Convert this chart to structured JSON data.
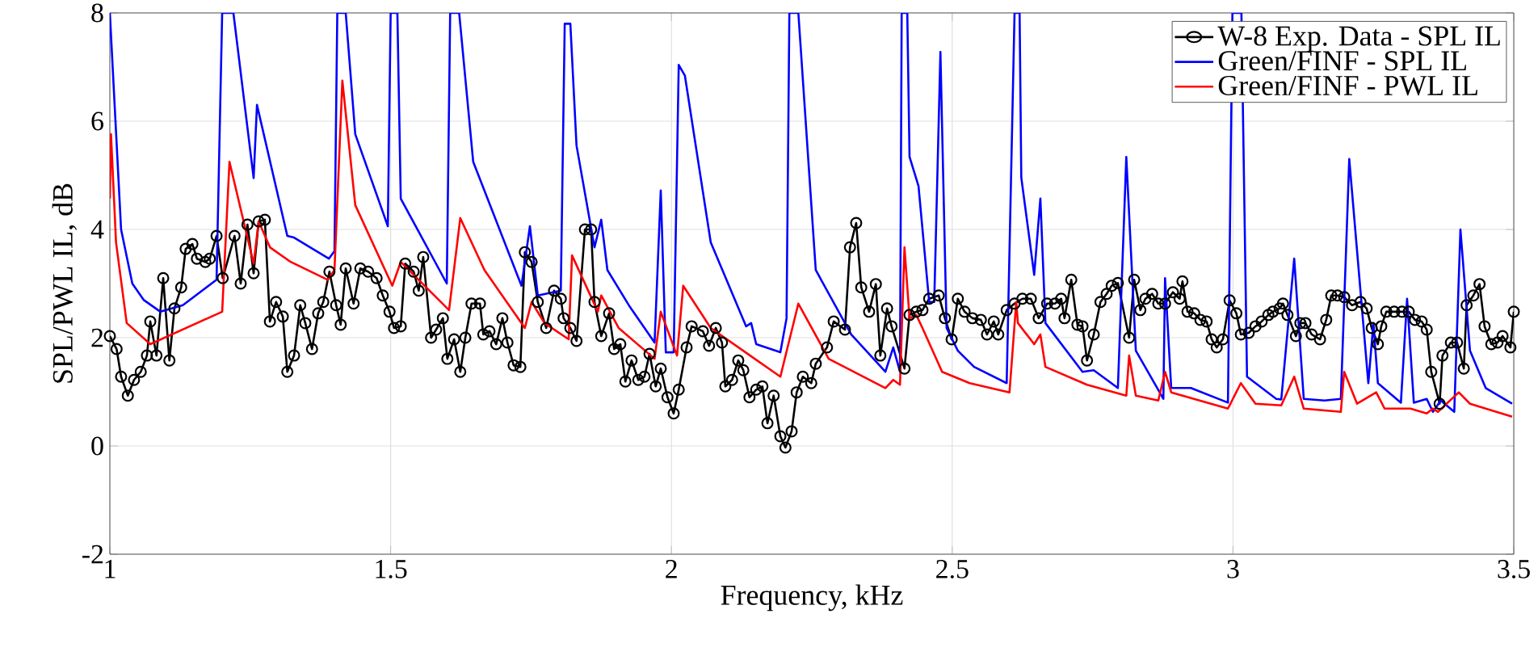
{
  "chart_data": {
    "type": "line",
    "xlabel": "Frequency, kHz",
    "ylabel": "SPL/PWL IL, dB",
    "xlim": [
      1,
      3.5
    ],
    "ylim": [
      -2,
      8
    ],
    "xticks": [
      1,
      1.5,
      2,
      2.5,
      3,
      3.5
    ],
    "yticks": [
      -2,
      0,
      2,
      4,
      6,
      8
    ],
    "grid": true,
    "legend": "top right",
    "series": [
      {
        "name": "W-8 Exp. Data - SPL IL",
        "color": "#000000",
        "marker": "circle",
        "x": [
          1.0,
          1.012,
          1.02,
          1.032,
          1.043,
          1.055,
          1.066,
          1.072,
          1.083,
          1.095,
          1.106,
          1.115,
          1.127,
          1.135,
          1.147,
          1.155,
          1.17,
          1.178,
          1.19,
          1.201,
          1.222,
          1.233,
          1.245,
          1.256,
          1.265,
          1.276,
          1.285,
          1.296,
          1.308,
          1.316,
          1.328,
          1.339,
          1.348,
          1.36,
          1.371,
          1.38,
          1.391,
          1.403,
          1.411,
          1.42,
          1.434,
          1.446,
          1.46,
          1.475,
          1.486,
          1.498,
          1.506,
          1.518,
          1.526,
          1.541,
          1.55,
          1.558,
          1.572,
          1.581,
          1.593,
          1.601,
          1.613,
          1.624,
          1.633,
          1.644,
          1.659,
          1.665,
          1.676,
          1.688,
          1.699,
          1.708,
          1.719,
          1.731,
          1.739,
          1.751,
          1.762,
          1.777,
          1.791,
          1.803,
          1.808,
          1.82,
          1.831,
          1.846,
          1.857,
          1.863,
          1.875,
          1.889,
          1.898,
          1.909,
          1.918,
          1.929,
          1.941,
          1.952,
          1.961,
          1.972,
          1.981,
          1.993,
          2.004,
          2.013,
          2.027,
          2.036,
          2.056,
          2.067,
          2.079,
          2.09,
          2.096,
          2.108,
          2.119,
          2.128,
          2.139,
          2.151,
          2.162,
          2.171,
          2.182,
          2.194,
          2.203,
          2.214,
          2.223,
          2.234,
          2.249,
          2.257,
          2.277,
          2.289,
          2.309,
          2.318,
          2.329,
          2.338,
          2.352,
          2.364,
          2.372,
          2.384,
          2.392,
          2.415,
          2.424,
          2.436,
          2.447,
          2.459,
          2.476,
          2.487,
          2.499,
          2.51,
          2.522,
          2.536,
          2.551,
          2.562,
          2.574,
          2.582,
          2.597,
          2.611,
          2.625,
          2.64,
          2.654,
          2.669,
          2.683,
          2.694,
          2.7,
          2.712,
          2.723,
          2.732,
          2.74,
          2.752,
          2.764,
          2.775,
          2.784,
          2.795,
          2.815,
          2.824,
          2.835,
          2.844,
          2.856,
          2.867,
          2.879,
          2.893,
          2.905,
          2.91,
          2.919,
          2.931,
          2.942,
          2.953,
          2.962,
          2.971,
          2.982,
          2.994,
          3.006,
          3.014,
          3.028,
          3.04,
          3.051,
          3.063,
          3.071,
          3.083,
          3.089,
          3.097,
          3.112,
          3.12,
          3.129,
          3.14,
          3.155,
          3.166,
          3.175,
          3.186,
          3.198,
          3.212,
          3.227,
          3.238,
          3.247,
          3.258,
          3.264,
          3.273,
          3.287,
          3.301,
          3.313,
          3.324,
          3.336,
          3.345,
          3.353,
          3.368,
          3.373,
          3.388,
          3.399,
          3.411,
          3.416,
          3.428,
          3.439,
          3.448,
          3.46,
          3.471,
          3.48,
          3.494,
          3.5
        ],
        "values": [
          2.03,
          1.79,
          1.28,
          0.93,
          1.22,
          1.37,
          1.67,
          2.3,
          1.67,
          3.1,
          1.58,
          2.54,
          2.93,
          3.64,
          3.73,
          3.46,
          3.4,
          3.46,
          3.88,
          3.1,
          3.88,
          3.0,
          4.09,
          3.19,
          4.15,
          4.18,
          2.3,
          2.66,
          2.39,
          1.37,
          1.67,
          2.6,
          2.27,
          1.79,
          2.45,
          2.66,
          3.22,
          2.6,
          2.24,
          3.28,
          2.63,
          3.28,
          3.22,
          3.1,
          2.78,
          2.48,
          2.18,
          2.21,
          3.37,
          3.22,
          2.87,
          3.49,
          2.0,
          2.15,
          2.36,
          1.61,
          1.97,
          1.37,
          2.0,
          2.63,
          2.63,
          2.06,
          2.12,
          1.88,
          2.36,
          1.91,
          1.49,
          1.46,
          3.58,
          3.4,
          2.66,
          2.18,
          2.87,
          2.72,
          2.36,
          2.18,
          1.94,
          4.0,
          4.0,
          2.66,
          2.03,
          2.45,
          1.79,
          1.88,
          1.19,
          1.58,
          1.22,
          1.28,
          1.7,
          1.1,
          1.43,
          0.9,
          0.6,
          1.04,
          1.82,
          2.21,
          2.12,
          1.85,
          2.18,
          1.91,
          1.1,
          1.22,
          1.58,
          1.4,
          0.9,
          1.04,
          1.1,
          0.42,
          0.93,
          0.18,
          -0.03,
          0.27,
          0.99,
          1.28,
          1.16,
          1.52,
          1.82,
          2.3,
          2.15,
          3.67,
          4.12,
          2.93,
          2.48,
          2.99,
          1.67,
          2.54,
          2.21,
          1.43,
          2.42,
          2.48,
          2.51,
          2.72,
          2.78,
          2.36,
          1.97,
          2.72,
          2.48,
          2.36,
          2.33,
          2.06,
          2.3,
          2.06,
          2.51,
          2.63,
          2.72,
          2.72,
          2.36,
          2.63,
          2.63,
          2.72,
          2.36,
          3.07,
          2.24,
          2.21,
          1.58,
          2.06,
          2.66,
          2.81,
          2.96,
          3.01,
          2.0,
          3.07,
          2.51,
          2.72,
          2.81,
          2.63,
          2.63,
          2.84,
          2.72,
          3.04,
          2.48,
          2.45,
          2.33,
          2.3,
          1.97,
          1.82,
          1.97,
          2.69,
          2.45,
          2.06,
          2.09,
          2.21,
          2.3,
          2.42,
          2.48,
          2.54,
          2.63,
          2.42,
          2.03,
          2.27,
          2.27,
          2.06,
          1.97,
          2.33,
          2.78,
          2.78,
          2.75,
          2.6,
          2.66,
          2.54,
          2.18,
          1.88,
          2.21,
          2.48,
          2.48,
          2.48,
          2.48,
          2.33,
          2.3,
          2.15,
          1.37,
          0.78,
          1.67,
          1.91,
          1.91,
          1.43,
          2.6,
          2.78,
          2.99,
          2.21,
          1.88,
          1.91,
          2.03,
          1.82,
          2.48
        ]
      },
      {
        "name": "Green/FINF - SPL IL",
        "color": "#0000ff",
        "marker": "none",
        "x": [
          1.0,
          1.01,
          1.02,
          1.04,
          1.06,
          1.09,
          1.13,
          1.19,
          1.2,
          1.22,
          1.256,
          1.262,
          1.316,
          1.328,
          1.39,
          1.4,
          1.405,
          1.42,
          1.437,
          1.495,
          1.5,
          1.512,
          1.518,
          1.6,
          1.606,
          1.622,
          1.647,
          1.733,
          1.748,
          1.762,
          1.803,
          1.81,
          1.82,
          1.831,
          1.863,
          1.875,
          1.886,
          1.926,
          1.97,
          1.981,
          1.99,
          2.004,
          2.013,
          2.024,
          2.07,
          2.133,
          2.142,
          2.151,
          2.194,
          2.205,
          2.21,
          2.226,
          2.257,
          2.32,
          2.381,
          2.395,
          2.407,
          2.41,
          2.42,
          2.424,
          2.44,
          2.459,
          2.468,
          2.479,
          2.49,
          2.51,
          2.539,
          2.597,
          2.611,
          2.62,
          2.623,
          2.646,
          2.657,
          2.666,
          2.732,
          2.752,
          2.795,
          2.81,
          2.827,
          2.876,
          2.879,
          2.89,
          2.925,
          2.991,
          2.999,
          3.015,
          3.025,
          3.077,
          3.086,
          3.109,
          3.126,
          3.163,
          3.192,
          3.207,
          3.241,
          3.25,
          3.258,
          3.299,
          3.31,
          3.322,
          3.345,
          3.356,
          3.37,
          3.394,
          3.405,
          3.422,
          3.45,
          3.497
        ],
        "values": [
          8,
          6,
          4,
          3,
          2.7,
          2.48,
          2.6,
          3.07,
          8,
          8,
          4.95,
          6.3,
          3.88,
          3.85,
          3.46,
          3.6,
          8,
          8,
          5.76,
          4.06,
          8,
          8,
          4.57,
          3.0,
          8,
          8,
          5.25,
          2.96,
          4.06,
          2.78,
          2.87,
          7.8,
          7.8,
          5.55,
          3.67,
          4.18,
          3.25,
          2.57,
          1.91,
          4.72,
          1.73,
          1.73,
          7.04,
          6.84,
          3.76,
          2.21,
          2.27,
          1.88,
          1.73,
          2.36,
          8,
          8,
          3.25,
          2.06,
          1.37,
          1.82,
          1.37,
          8,
          8,
          5.34,
          4.8,
          2.66,
          2.66,
          7.28,
          2.18,
          1.76,
          1.46,
          1.16,
          8,
          8,
          4.96,
          3.16,
          4.57,
          2.27,
          1.37,
          1.4,
          1.07,
          5.34,
          1.76,
          0.87,
          3.1,
          1.07,
          1.07,
          0.8,
          8,
          8,
          1.28,
          0.87,
          0.86,
          3.46,
          0.87,
          0.84,
          0.87,
          5.3,
          1.16,
          2.27,
          1.16,
          0.8,
          2.72,
          0.8,
          0.87,
          0.63,
          0.84,
          0.63,
          4.0,
          1.76,
          1.07,
          0.78
        ]
      },
      {
        "name": "Green/FINF - PWL IL",
        "color": "#ff0000",
        "marker": "none",
        "x": [
          1.0,
          1.002,
          1.011,
          1.03,
          1.072,
          1.2,
          1.213,
          1.256,
          1.265,
          1.285,
          1.322,
          1.388,
          1.4,
          1.414,
          1.437,
          1.503,
          1.518,
          1.604,
          1.624,
          1.667,
          1.739,
          1.751,
          1.774,
          1.817,
          1.823,
          1.869,
          1.875,
          1.906,
          1.97,
          1.981,
          2.01,
          2.021,
          2.07,
          2.136,
          2.194,
          2.226,
          2.28,
          2.381,
          2.395,
          2.407,
          2.415,
          2.424,
          2.436,
          2.447,
          2.482,
          2.531,
          2.602,
          2.614,
          2.617,
          2.646,
          2.657,
          2.666,
          2.74,
          2.81,
          2.815,
          2.827,
          2.867,
          2.879,
          2.89,
          2.991,
          3.014,
          3.04,
          3.086,
          3.109,
          3.126,
          3.192,
          3.198,
          3.221,
          3.255,
          3.27,
          3.316,
          3.345,
          3.356,
          3.365,
          3.402,
          3.422,
          3.497
        ],
        "values": [
          4.57,
          5.76,
          3.76,
          2.27,
          1.88,
          2.48,
          5.25,
          3.37,
          4.15,
          3.67,
          3.4,
          3.07,
          3.25,
          6.75,
          4.45,
          2.96,
          3.4,
          2.51,
          4.21,
          3.25,
          2.18,
          2.66,
          2.27,
          1.97,
          3.52,
          2.48,
          2.78,
          2.18,
          1.61,
          2.48,
          1.67,
          2.96,
          2.18,
          1.7,
          1.28,
          2.63,
          1.61,
          1.07,
          1.22,
          1.13,
          3.67,
          2.36,
          2.42,
          2.18,
          1.37,
          1.16,
          0.99,
          2.66,
          2.27,
          1.88,
          2.06,
          1.46,
          1.13,
          0.93,
          1.67,
          0.93,
          0.84,
          1.37,
          0.99,
          0.69,
          1.16,
          0.78,
          0.75,
          1.28,
          0.69,
          0.63,
          1.37,
          0.78,
          0.99,
          0.69,
          0.69,
          0.6,
          0.69,
          0.63,
          0.99,
          0.78,
          0.54
        ]
      }
    ]
  }
}
